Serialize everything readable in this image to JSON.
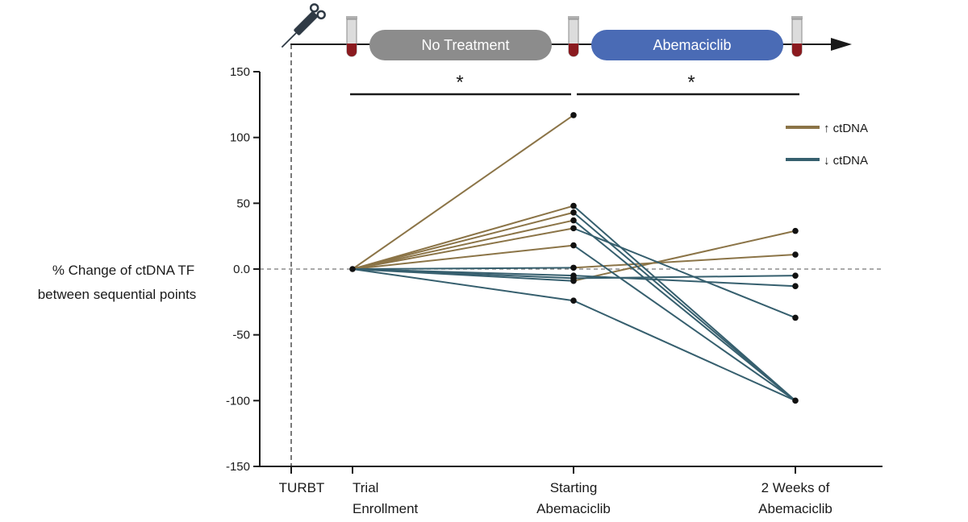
{
  "chart_data": {
    "type": "line",
    "ylabel_lines": [
      "% Change of ctDNA TF",
      "between sequential points"
    ],
    "ylim": [
      -150,
      150
    ],
    "yticks": [
      150,
      100,
      50,
      0,
      -50,
      -100,
      -150
    ],
    "ytick_labels": [
      "150",
      "100",
      "50",
      "0.0",
      "-50",
      "-100",
      "-150"
    ],
    "categories": [
      {
        "name": "TURBT",
        "lines": [
          "TURBT"
        ]
      },
      {
        "name": "Trial Enrollment",
        "lines": [
          "Trial",
          "Enrollment"
        ]
      },
      {
        "name": "Starting Abemaciclib",
        "lines": [
          "Starting",
          "Abemaciclib"
        ]
      },
      {
        "name": "2 Weeks of Abemaciclib",
        "lines": [
          "2 Weeks of",
          "Abemaciclib"
        ]
      }
    ],
    "reference_line": 0,
    "timeline": {
      "phases": [
        "No Treatment",
        "Abemaciclib"
      ],
      "phase_colors": [
        "#8c8c8c",
        "#4a6bb5"
      ]
    },
    "significance": [
      "*",
      "*"
    ],
    "legend": [
      {
        "label": "↑ ctDNA",
        "color": "#8b7447"
      },
      {
        "label": "↓  ctDNA",
        "color": "#365f6e"
      }
    ],
    "segments": [
      {
        "group": 0,
        "from": 1,
        "to": 2,
        "y0": 0,
        "y1": 117
      },
      {
        "group": 0,
        "from": 1,
        "to": 2,
        "y0": 0,
        "y1": 48
      },
      {
        "group": 0,
        "from": 1,
        "to": 2,
        "y0": 0,
        "y1": 43
      },
      {
        "group": 0,
        "from": 1,
        "to": 2,
        "y0": 0,
        "y1": 37
      },
      {
        "group": 0,
        "from": 1,
        "to": 2,
        "y0": 0,
        "y1": 31
      },
      {
        "group": 0,
        "from": 1,
        "to": 2,
        "y0": 0,
        "y1": 18
      },
      {
        "group": 1,
        "from": 1,
        "to": 2,
        "y0": 0,
        "y1": 1
      },
      {
        "group": 1,
        "from": 1,
        "to": 2,
        "y0": 0,
        "y1": -5
      },
      {
        "group": 1,
        "from": 1,
        "to": 2,
        "y0": 0,
        "y1": -7
      },
      {
        "group": 1,
        "from": 1,
        "to": 2,
        "y0": 0,
        "y1": -9
      },
      {
        "group": 1,
        "from": 1,
        "to": 2,
        "y0": 0,
        "y1": -24
      },
      {
        "group": 0,
        "from": 2,
        "to": 3,
        "y0": -9,
        "y1": 29
      },
      {
        "group": 0,
        "from": 2,
        "to": 3,
        "y0": 1,
        "y1": 11
      },
      {
        "group": 1,
        "from": 2,
        "to": 3,
        "y0": -7,
        "y1": -5
      },
      {
        "group": 1,
        "from": 2,
        "to": 3,
        "y0": -5,
        "y1": -13
      },
      {
        "group": 1,
        "from": 2,
        "to": 3,
        "y0": 31,
        "y1": -37
      },
      {
        "group": 1,
        "from": 2,
        "to": 3,
        "y0": 48,
        "y1": -100
      },
      {
        "group": 1,
        "from": 2,
        "to": 3,
        "y0": 43,
        "y1": -100
      },
      {
        "group": 1,
        "from": 2,
        "to": 3,
        "y0": 37,
        "y1": -100
      },
      {
        "group": 1,
        "from": 2,
        "to": 3,
        "y0": 18,
        "y1": -100
      },
      {
        "group": 1,
        "from": 2,
        "to": 3,
        "y0": -24,
        "y1": -100
      }
    ],
    "points": [
      {
        "cat": 1,
        "y": 0
      },
      {
        "cat": 2,
        "y": 117
      },
      {
        "cat": 2,
        "y": 48
      },
      {
        "cat": 2,
        "y": 43
      },
      {
        "cat": 2,
        "y": 37
      },
      {
        "cat": 2,
        "y": 31
      },
      {
        "cat": 2,
        "y": 18
      },
      {
        "cat": 2,
        "y": 1
      },
      {
        "cat": 2,
        "y": -5
      },
      {
        "cat": 2,
        "y": -7
      },
      {
        "cat": 2,
        "y": -9
      },
      {
        "cat": 2,
        "y": -24
      },
      {
        "cat": 3,
        "y": 29
      },
      {
        "cat": 3,
        "y": 11
      },
      {
        "cat": 3,
        "y": -5
      },
      {
        "cat": 3,
        "y": -13
      },
      {
        "cat": 3,
        "y": -37
      },
      {
        "cat": 3,
        "y": -100
      }
    ]
  }
}
